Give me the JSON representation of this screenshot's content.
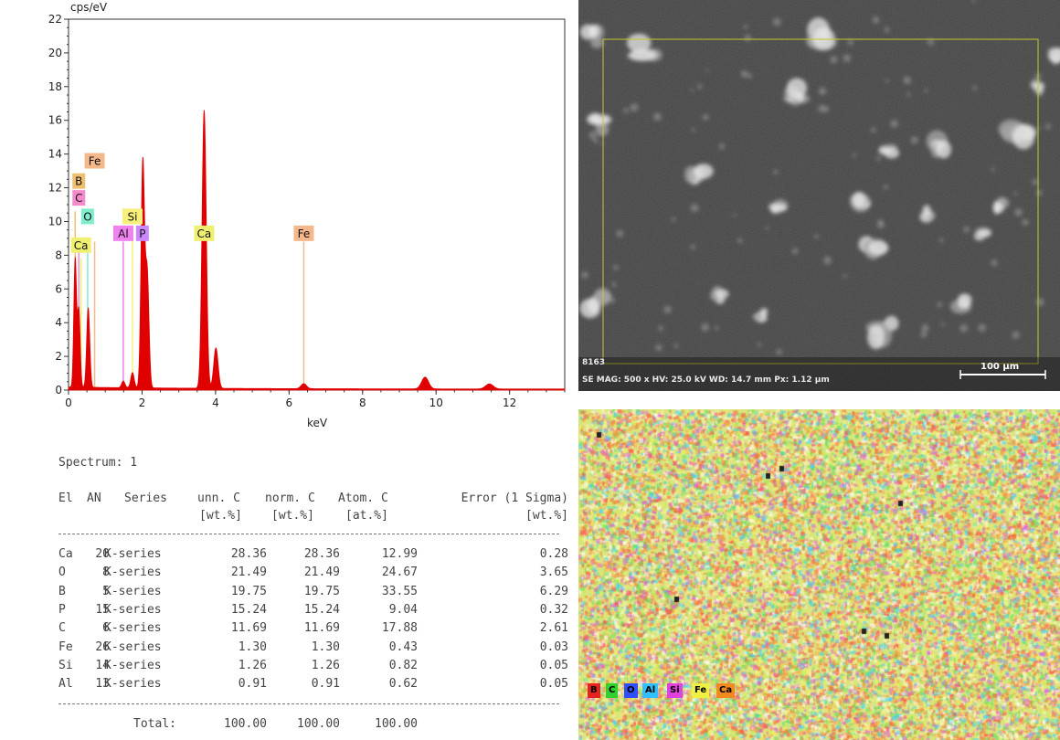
{
  "chart_data": {
    "type": "line",
    "y_unit_label": "cps/eV",
    "xlabel": "keV",
    "xlim": [
      0,
      13.5
    ],
    "ylim": [
      0,
      22
    ],
    "x_ticks": [
      0,
      2,
      4,
      6,
      8,
      10,
      12
    ],
    "y_ticks": [
      0,
      2,
      4,
      6,
      8,
      10,
      12,
      14,
      16,
      18,
      20,
      22
    ],
    "spectrum_color": "#e00000",
    "peaks": [
      {
        "x": 0.18,
        "y": 7.6
      },
      {
        "x": 0.28,
        "y": 4.6
      },
      {
        "x": 0.52,
        "y": 2.4
      },
      {
        "x": 0.55,
        "y": 2.7
      },
      {
        "x": 1.49,
        "y": 0.4
      },
      {
        "x": 1.74,
        "y": 0.9
      },
      {
        "x": 2.02,
        "y": 13.4
      },
      {
        "x": 2.14,
        "y": 6.8
      },
      {
        "x": 3.69,
        "y": 16.5
      },
      {
        "x": 4.01,
        "y": 2.4
      },
      {
        "x": 6.4,
        "y": 0.3
      },
      {
        "x": 9.7,
        "y": 0.7
      },
      {
        "x": 11.45,
        "y": 0.3
      }
    ],
    "element_markers": [
      {
        "label": "B",
        "x": 0.18,
        "line_top": 10.6,
        "box_y": 12.4,
        "color": "#f0c070"
      },
      {
        "label": "Fe",
        "x": 0.71,
        "line_top": 8.8,
        "box_y": 13.6,
        "color": "#f5b88a"
      },
      {
        "label": "C",
        "x": 0.28,
        "line_top": 8.6,
        "box_y": 11.4,
        "color": "#f58acb"
      },
      {
        "label": "O",
        "x": 0.52,
        "line_top": 8.6,
        "box_y": 10.3,
        "color": "#80eecc"
      },
      {
        "label": "Ca",
        "x": 0.34,
        "line_top": 7.8,
        "box_y": 8.6,
        "color": "#f0f070"
      },
      {
        "label": "Si",
        "x": 1.74,
        "line_top": 9.0,
        "box_y": 10.3,
        "color": "#f7f07a"
      },
      {
        "label": "Al",
        "x": 1.49,
        "line_top": 8.8,
        "box_y": 9.3,
        "color": "#ee82ee"
      },
      {
        "label": "P",
        "x": 2.01,
        "line_top": 8.8,
        "box_y": 9.3,
        "color": "#cc88ff"
      },
      {
        "label": "Ca",
        "x": 3.69,
        "line_top": 8.8,
        "box_y": 9.3,
        "color": "#f0f070"
      },
      {
        "label": "Fe",
        "x": 6.4,
        "line_top": 8.8,
        "box_y": 9.3,
        "color": "#f5b88a"
      }
    ],
    "table": {
      "title": "Spectrum: 1",
      "header1": [
        "El",
        "AN",
        "Series",
        "unn. C",
        "norm. C",
        "Atom. C",
        "Error (1 Sigma)"
      ],
      "header2": [
        "[wt.%]",
        "[wt.%]",
        "[at.%]",
        "[wt.%]"
      ],
      "rows": [
        [
          "Ca",
          "20",
          "K-series",
          "28.36",
          "28.36",
          "12.99",
          "0.28"
        ],
        [
          "O",
          "8",
          "K-series",
          "21.49",
          "21.49",
          "24.67",
          "3.65"
        ],
        [
          "B",
          "5",
          "K-series",
          "19.75",
          "19.75",
          "33.55",
          "6.29"
        ],
        [
          "P",
          "15",
          "K-series",
          "15.24",
          "15.24",
          "9.04",
          "0.32"
        ],
        [
          "C",
          "6",
          "K-series",
          "11.69",
          "11.69",
          "17.88",
          "2.61"
        ],
        [
          "Fe",
          "26",
          "K-series",
          "1.30",
          "1.30",
          "0.43",
          "0.03"
        ],
        [
          "Si",
          "14",
          "K-series",
          "1.26",
          "1.26",
          "0.82",
          "0.05"
        ],
        [
          "Al",
          "13",
          "K-series",
          "0.91",
          "0.91",
          "0.62",
          "0.05"
        ]
      ],
      "total_label": "Total:",
      "totals": [
        "100.00",
        "100.00",
        "100.00"
      ]
    }
  },
  "sem_image": {
    "id_label": "8163",
    "info": "SE MAG: 500 x HV: 25.0 kV WD: 14.7 mm Px: 1.12 µm",
    "scale_label": "100 µm",
    "frame_color": "#c8c832"
  },
  "map_image": {
    "legend": [
      {
        "label": "B",
        "color": "#e82020"
      },
      {
        "label": "C",
        "color": "#30d030"
      },
      {
        "label": "O",
        "color": "#3050ff"
      },
      {
        "label": "Al",
        "color": "#30c0ff"
      },
      {
        "label": "Si",
        "color": "#e040e0"
      },
      {
        "label": "Fe",
        "color": "#f0f040"
      },
      {
        "label": "Ca",
        "color": "#f08a20"
      }
    ]
  }
}
